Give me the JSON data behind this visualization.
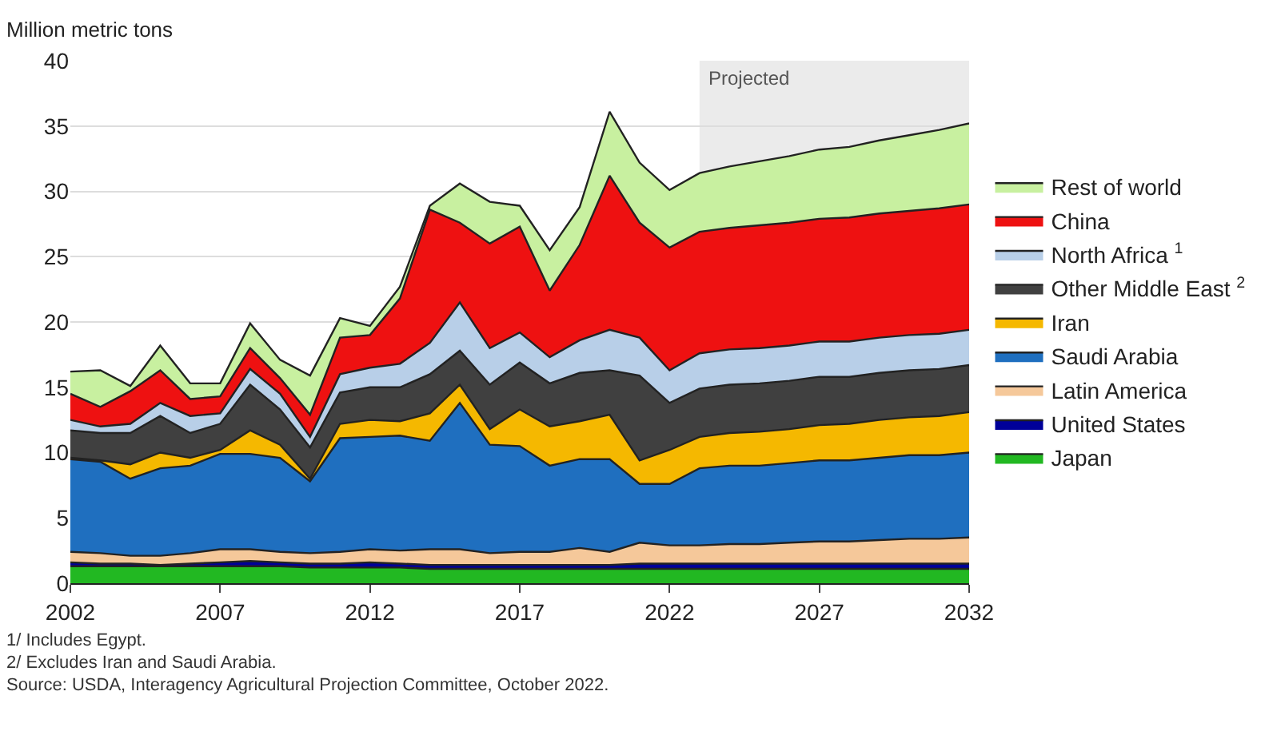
{
  "chart_data": {
    "type": "area",
    "stacked": true,
    "ylabel": "Million metric tons",
    "x": [
      2002,
      2003,
      2004,
      2005,
      2006,
      2007,
      2008,
      2009,
      2010,
      2011,
      2012,
      2013,
      2014,
      2015,
      2016,
      2017,
      2018,
      2019,
      2020,
      2021,
      2022,
      2023,
      2024,
      2025,
      2026,
      2027,
      2028,
      2029,
      2030,
      2031,
      2032
    ],
    "series": [
      {
        "name": "Japan",
        "color": "#22b822",
        "values": [
          1.3,
          1.3,
          1.3,
          1.3,
          1.3,
          1.3,
          1.3,
          1.3,
          1.2,
          1.2,
          1.2,
          1.2,
          1.1,
          1.1,
          1.1,
          1.1,
          1.1,
          1.1,
          1.1,
          1.1,
          1.1,
          1.1,
          1.1,
          1.1,
          1.1,
          1.1,
          1.1,
          1.1,
          1.1,
          1.1,
          1.1
        ]
      },
      {
        "name": "United States",
        "color": "#000099",
        "values": [
          0.3,
          0.2,
          0.2,
          0.1,
          0.2,
          0.3,
          0.4,
          0.3,
          0.3,
          0.3,
          0.4,
          0.3,
          0.3,
          0.3,
          0.3,
          0.3,
          0.3,
          0.3,
          0.3,
          0.4,
          0.4,
          0.4,
          0.4,
          0.4,
          0.4,
          0.4,
          0.4,
          0.4,
          0.4,
          0.4,
          0.4
        ]
      },
      {
        "name": "Latin America",
        "color": "#f5c89a",
        "values": [
          0.8,
          0.8,
          0.6,
          0.7,
          0.8,
          1.0,
          0.9,
          0.8,
          0.8,
          0.9,
          1.0,
          1.0,
          1.2,
          1.2,
          0.9,
          1.0,
          1.0,
          1.3,
          1.0,
          1.6,
          1.4,
          1.4,
          1.5,
          1.5,
          1.6,
          1.7,
          1.7,
          1.8,
          1.9,
          1.9,
          2.0
        ]
      },
      {
        "name": "Saudi Arabia",
        "color": "#1f6fbf",
        "values": [
          7.1,
          7.0,
          5.9,
          6.7,
          6.7,
          7.3,
          7.3,
          7.2,
          5.5,
          8.7,
          8.6,
          8.8,
          8.3,
          11.2,
          8.3,
          8.1,
          6.6,
          6.8,
          7.1,
          4.5,
          4.7,
          5.9,
          6.0,
          6.0,
          6.1,
          6.2,
          6.2,
          6.3,
          6.4,
          6.4,
          6.5
        ]
      },
      {
        "name": "Iran",
        "color": "#f5b800",
        "values": [
          0.1,
          0.1,
          1.1,
          1.2,
          0.6,
          0.3,
          1.8,
          1.0,
          0.2,
          1.1,
          1.3,
          1.1,
          2.1,
          1.4,
          1.2,
          2.8,
          3.0,
          2.9,
          3.4,
          1.8,
          2.6,
          2.4,
          2.5,
          2.6,
          2.6,
          2.7,
          2.8,
          2.9,
          2.9,
          3.0,
          3.1
        ]
      },
      {
        "name": "Other Middle East $^{2}$",
        "color": "#404040",
        "values": [
          2.1,
          2.1,
          2.4,
          2.8,
          1.9,
          2.0,
          3.5,
          2.7,
          2.4,
          2.4,
          2.5,
          2.6,
          3.0,
          2.6,
          3.4,
          3.6,
          3.3,
          3.7,
          3.4,
          6.5,
          3.6,
          3.7,
          3.7,
          3.7,
          3.7,
          3.7,
          3.6,
          3.6,
          3.6,
          3.6,
          3.6
        ]
      },
      {
        "name": "North Africa $^{1}$",
        "color": "#b8cfe8",
        "values": [
          0.8,
          0.5,
          0.7,
          1.0,
          1.3,
          0.8,
          1.2,
          1.2,
          0.8,
          1.4,
          1.5,
          1.8,
          2.4,
          3.7,
          2.8,
          2.3,
          2.0,
          2.5,
          3.1,
          2.9,
          2.5,
          2.7,
          2.7,
          2.7,
          2.7,
          2.7,
          2.7,
          2.7,
          2.7,
          2.7,
          2.7
        ]
      },
      {
        "name": "China",
        "color": "#ee1111",
        "values": [
          2.0,
          1.5,
          2.5,
          2.5,
          1.3,
          1.3,
          1.6,
          1.2,
          1.7,
          2.8,
          2.5,
          5.0,
          10.2,
          6.1,
          8.0,
          8.1,
          5.1,
          7.3,
          11.8,
          8.8,
          9.4,
          9.3,
          9.3,
          9.4,
          9.4,
          9.4,
          9.5,
          9.5,
          9.5,
          9.6,
          9.6
        ]
      },
      {
        "name": "Rest of world",
        "color": "#c8f0a0",
        "values": [
          1.7,
          2.8,
          0.4,
          1.9,
          1.2,
          1.0,
          1.9,
          1.4,
          3.0,
          1.5,
          0.7,
          0.9,
          0.3,
          3.0,
          3.2,
          1.6,
          3.1,
          2.9,
          4.9,
          4.6,
          4.4,
          4.5,
          4.7,
          4.9,
          5.1,
          5.3,
          5.4,
          5.6,
          5.8,
          6.0,
          6.2
        ]
      }
    ],
    "xlim": [
      2002,
      2032
    ],
    "xticks": [
      2002,
      2007,
      2012,
      2017,
      2022,
      2027,
      2032
    ],
    "ylim": [
      0,
      40
    ],
    "yticks": [
      0,
      5,
      10,
      15,
      20,
      25,
      30,
      35,
      40
    ],
    "grid": "y",
    "legend": "right",
    "bands": [
      {
        "axis": "x",
        "from": 2023,
        "to": 2032,
        "label": "Projected",
        "color": "#ebebeb"
      }
    ],
    "annotations": [
      "1/ Includes Egypt.",
      "2/ Excludes Iran and Saudi Arabia.",
      "Source: USDA, Interagency Agricultural Projection Committee, October 2022."
    ]
  }
}
